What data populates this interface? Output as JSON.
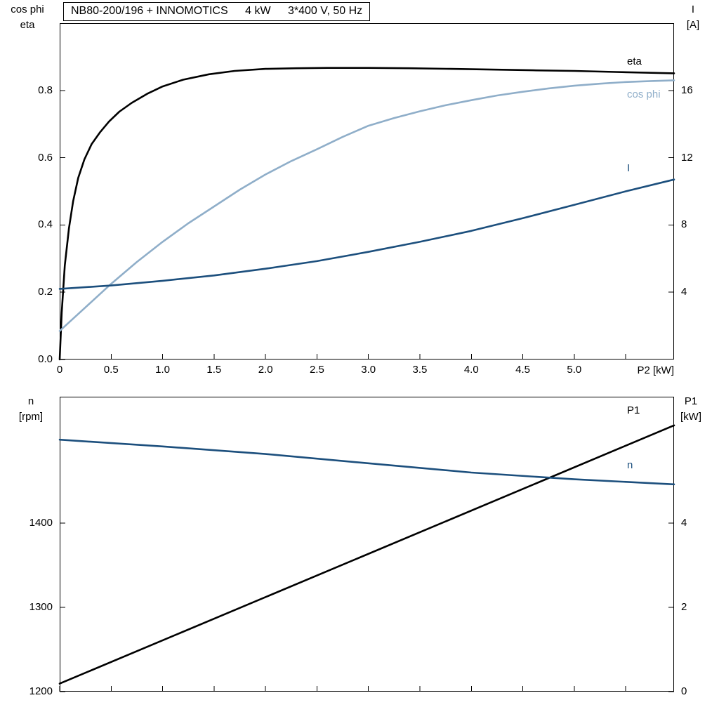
{
  "palette": {
    "black": "#000000",
    "lightblue": "#8faec9",
    "darkblue": "#1c4f7d"
  },
  "header": {
    "title_model": "NB80-200/196 + INNOMOTICS",
    "title_power": "4 kW",
    "title_voltage": "3*400 V, 50 Hz"
  },
  "axes_headers": {
    "top_left_line1": "cos phi",
    "top_left_line2": "eta",
    "top_right_line1": "I",
    "top_right_line2": "[A]",
    "bottom_left_line1": "n",
    "bottom_left_line2": "[rpm]",
    "bottom_right_line1": "P1",
    "bottom_right_line2": "[kW]"
  },
  "x_axis_title": "P2 [kW]",
  "curve_labels": {
    "eta": {
      "text": "eta",
      "color": "black"
    },
    "cos_phi": {
      "text": "cos phi",
      "color": "lightblue"
    },
    "current": {
      "text": "I",
      "color": "darkblue"
    },
    "p1": {
      "text": "P1",
      "color": "black"
    },
    "n": {
      "text": "n",
      "color": "darkblue"
    }
  },
  "chart_data": [
    {
      "type": "line",
      "title": "NB80-200/196 + INNOMOTICS   4 kW   3*400 V, 50 Hz",
      "xlabel": "P2 [kW]",
      "ylabel_left": "cos phi / eta",
      "ylabel_right": "I [A]",
      "grid": false,
      "legend_position": "inside-right",
      "xlim": [
        0,
        5.97
      ],
      "ylim_left": [
        0,
        1.0
      ],
      "ylim_right": [
        0,
        20
      ],
      "x_ticks": {
        "values": [
          0,
          0.5,
          1.0,
          1.5,
          2.0,
          2.5,
          3.0,
          3.5,
          4.0,
          4.5,
          5.0,
          5.5
        ],
        "labels": [
          "0",
          "0.5",
          "1.0",
          "1.5",
          "2.0",
          "2.5",
          "3.0",
          "3.5",
          "4.0",
          "4.5",
          "5.0",
          ""
        ]
      },
      "left_ticks": {
        "values": [
          0,
          0.2,
          0.4,
          0.6,
          0.8
        ],
        "labels": [
          "0.0",
          "0.2",
          "0.4",
          "0.6",
          "0.8"
        ]
      },
      "right_ticks": {
        "values": [
          4,
          8,
          12,
          16
        ],
        "labels": [
          "4",
          "8",
          "12",
          "16"
        ]
      },
      "series": [
        {
          "name": "eta",
          "color_key": "black",
          "axis": "left",
          "points": [
            [
              0,
              0
            ],
            [
              0.02,
              0.14
            ],
            [
              0.05,
              0.28
            ],
            [
              0.09,
              0.39
            ],
            [
              0.13,
              0.47
            ],
            [
              0.18,
              0.54
            ],
            [
              0.24,
              0.595
            ],
            [
              0.31,
              0.64
            ],
            [
              0.39,
              0.675
            ],
            [
              0.48,
              0.708
            ],
            [
              0.58,
              0.737
            ],
            [
              0.7,
              0.763
            ],
            [
              0.85,
              0.79
            ],
            [
              1.0,
              0.812
            ],
            [
              1.2,
              0.832
            ],
            [
              1.45,
              0.848
            ],
            [
              1.7,
              0.858
            ],
            [
              2.0,
              0.864
            ],
            [
              2.3,
              0.866
            ],
            [
              2.6,
              0.867
            ],
            [
              3.0,
              0.867
            ],
            [
              3.4,
              0.866
            ],
            [
              3.8,
              0.864
            ],
            [
              4.2,
              0.862
            ],
            [
              4.6,
              0.86
            ],
            [
              5.0,
              0.858
            ],
            [
              5.4,
              0.855
            ],
            [
              5.97,
              0.851
            ]
          ]
        },
        {
          "name": "cos phi",
          "color_key": "lightblue",
          "axis": "left",
          "points": [
            [
              0,
              0.085
            ],
            [
              0.25,
              0.155
            ],
            [
              0.5,
              0.225
            ],
            [
              0.75,
              0.29
            ],
            [
              1.0,
              0.35
            ],
            [
              1.25,
              0.405
            ],
            [
              1.5,
              0.455
            ],
            [
              1.75,
              0.505
            ],
            [
              2.0,
              0.55
            ],
            [
              2.25,
              0.59
            ],
            [
              2.5,
              0.625
            ],
            [
              2.75,
              0.662
            ],
            [
              3.0,
              0.695
            ],
            [
              3.25,
              0.718
            ],
            [
              3.5,
              0.738
            ],
            [
              3.75,
              0.756
            ],
            [
              4.0,
              0.771
            ],
            [
              4.25,
              0.785
            ],
            [
              4.5,
              0.796
            ],
            [
              4.75,
              0.806
            ],
            [
              5.0,
              0.814
            ],
            [
              5.25,
              0.82
            ],
            [
              5.5,
              0.825
            ],
            [
              5.75,
              0.828
            ],
            [
              5.97,
              0.83
            ]
          ]
        },
        {
          "name": "I",
          "color_key": "darkblue",
          "axis": "right",
          "points": [
            [
              0,
              4.2
            ],
            [
              0.5,
              4.4
            ],
            [
              1.0,
              4.68
            ],
            [
              1.5,
              5.0
            ],
            [
              2.0,
              5.4
            ],
            [
              2.5,
              5.85
            ],
            [
              3.0,
              6.4
            ],
            [
              3.5,
              7.0
            ],
            [
              4.0,
              7.65
            ],
            [
              4.5,
              8.4
            ],
            [
              5.0,
              9.2
            ],
            [
              5.5,
              10.0
            ],
            [
              5.97,
              10.7
            ]
          ]
        }
      ]
    },
    {
      "type": "line",
      "title": "",
      "xlabel": "P2 [kW]",
      "ylabel_left": "n [rpm]",
      "ylabel_right": "P1 [kW]",
      "grid": false,
      "legend_position": "inside-right",
      "xlim": [
        0,
        5.97
      ],
      "ylim_left": [
        1200,
        1550
      ],
      "ylim_right": [
        0,
        7
      ],
      "x_ticks": {
        "values": [
          0,
          0.5,
          1.0,
          1.5,
          2.0,
          2.5,
          3.0,
          3.5,
          4.0,
          4.5,
          5.0,
          5.5
        ],
        "labels": [
          "",
          "",
          "",
          "",
          "",
          "",
          "",
          "",
          "",
          "",
          "",
          ""
        ]
      },
      "left_ticks": {
        "values": [
          1200,
          1300,
          1400
        ],
        "labels": [
          "1200",
          "1300",
          "1400"
        ]
      },
      "right_ticks": {
        "values": [
          0,
          2,
          4
        ],
        "labels": [
          "0",
          "2",
          "4"
        ]
      },
      "series": [
        {
          "name": "P1",
          "color_key": "black",
          "axis": "right",
          "points": [
            [
              0,
              0.19
            ],
            [
              5.97,
              6.32
            ]
          ]
        },
        {
          "name": "n",
          "color_key": "darkblue",
          "axis": "left",
          "points": [
            [
              0,
              1499
            ],
            [
              1.0,
              1491
            ],
            [
              2.0,
              1482
            ],
            [
              3.0,
              1471
            ],
            [
              4.0,
              1460
            ],
            [
              5.0,
              1452
            ],
            [
              5.97,
              1446
            ]
          ]
        }
      ]
    }
  ]
}
